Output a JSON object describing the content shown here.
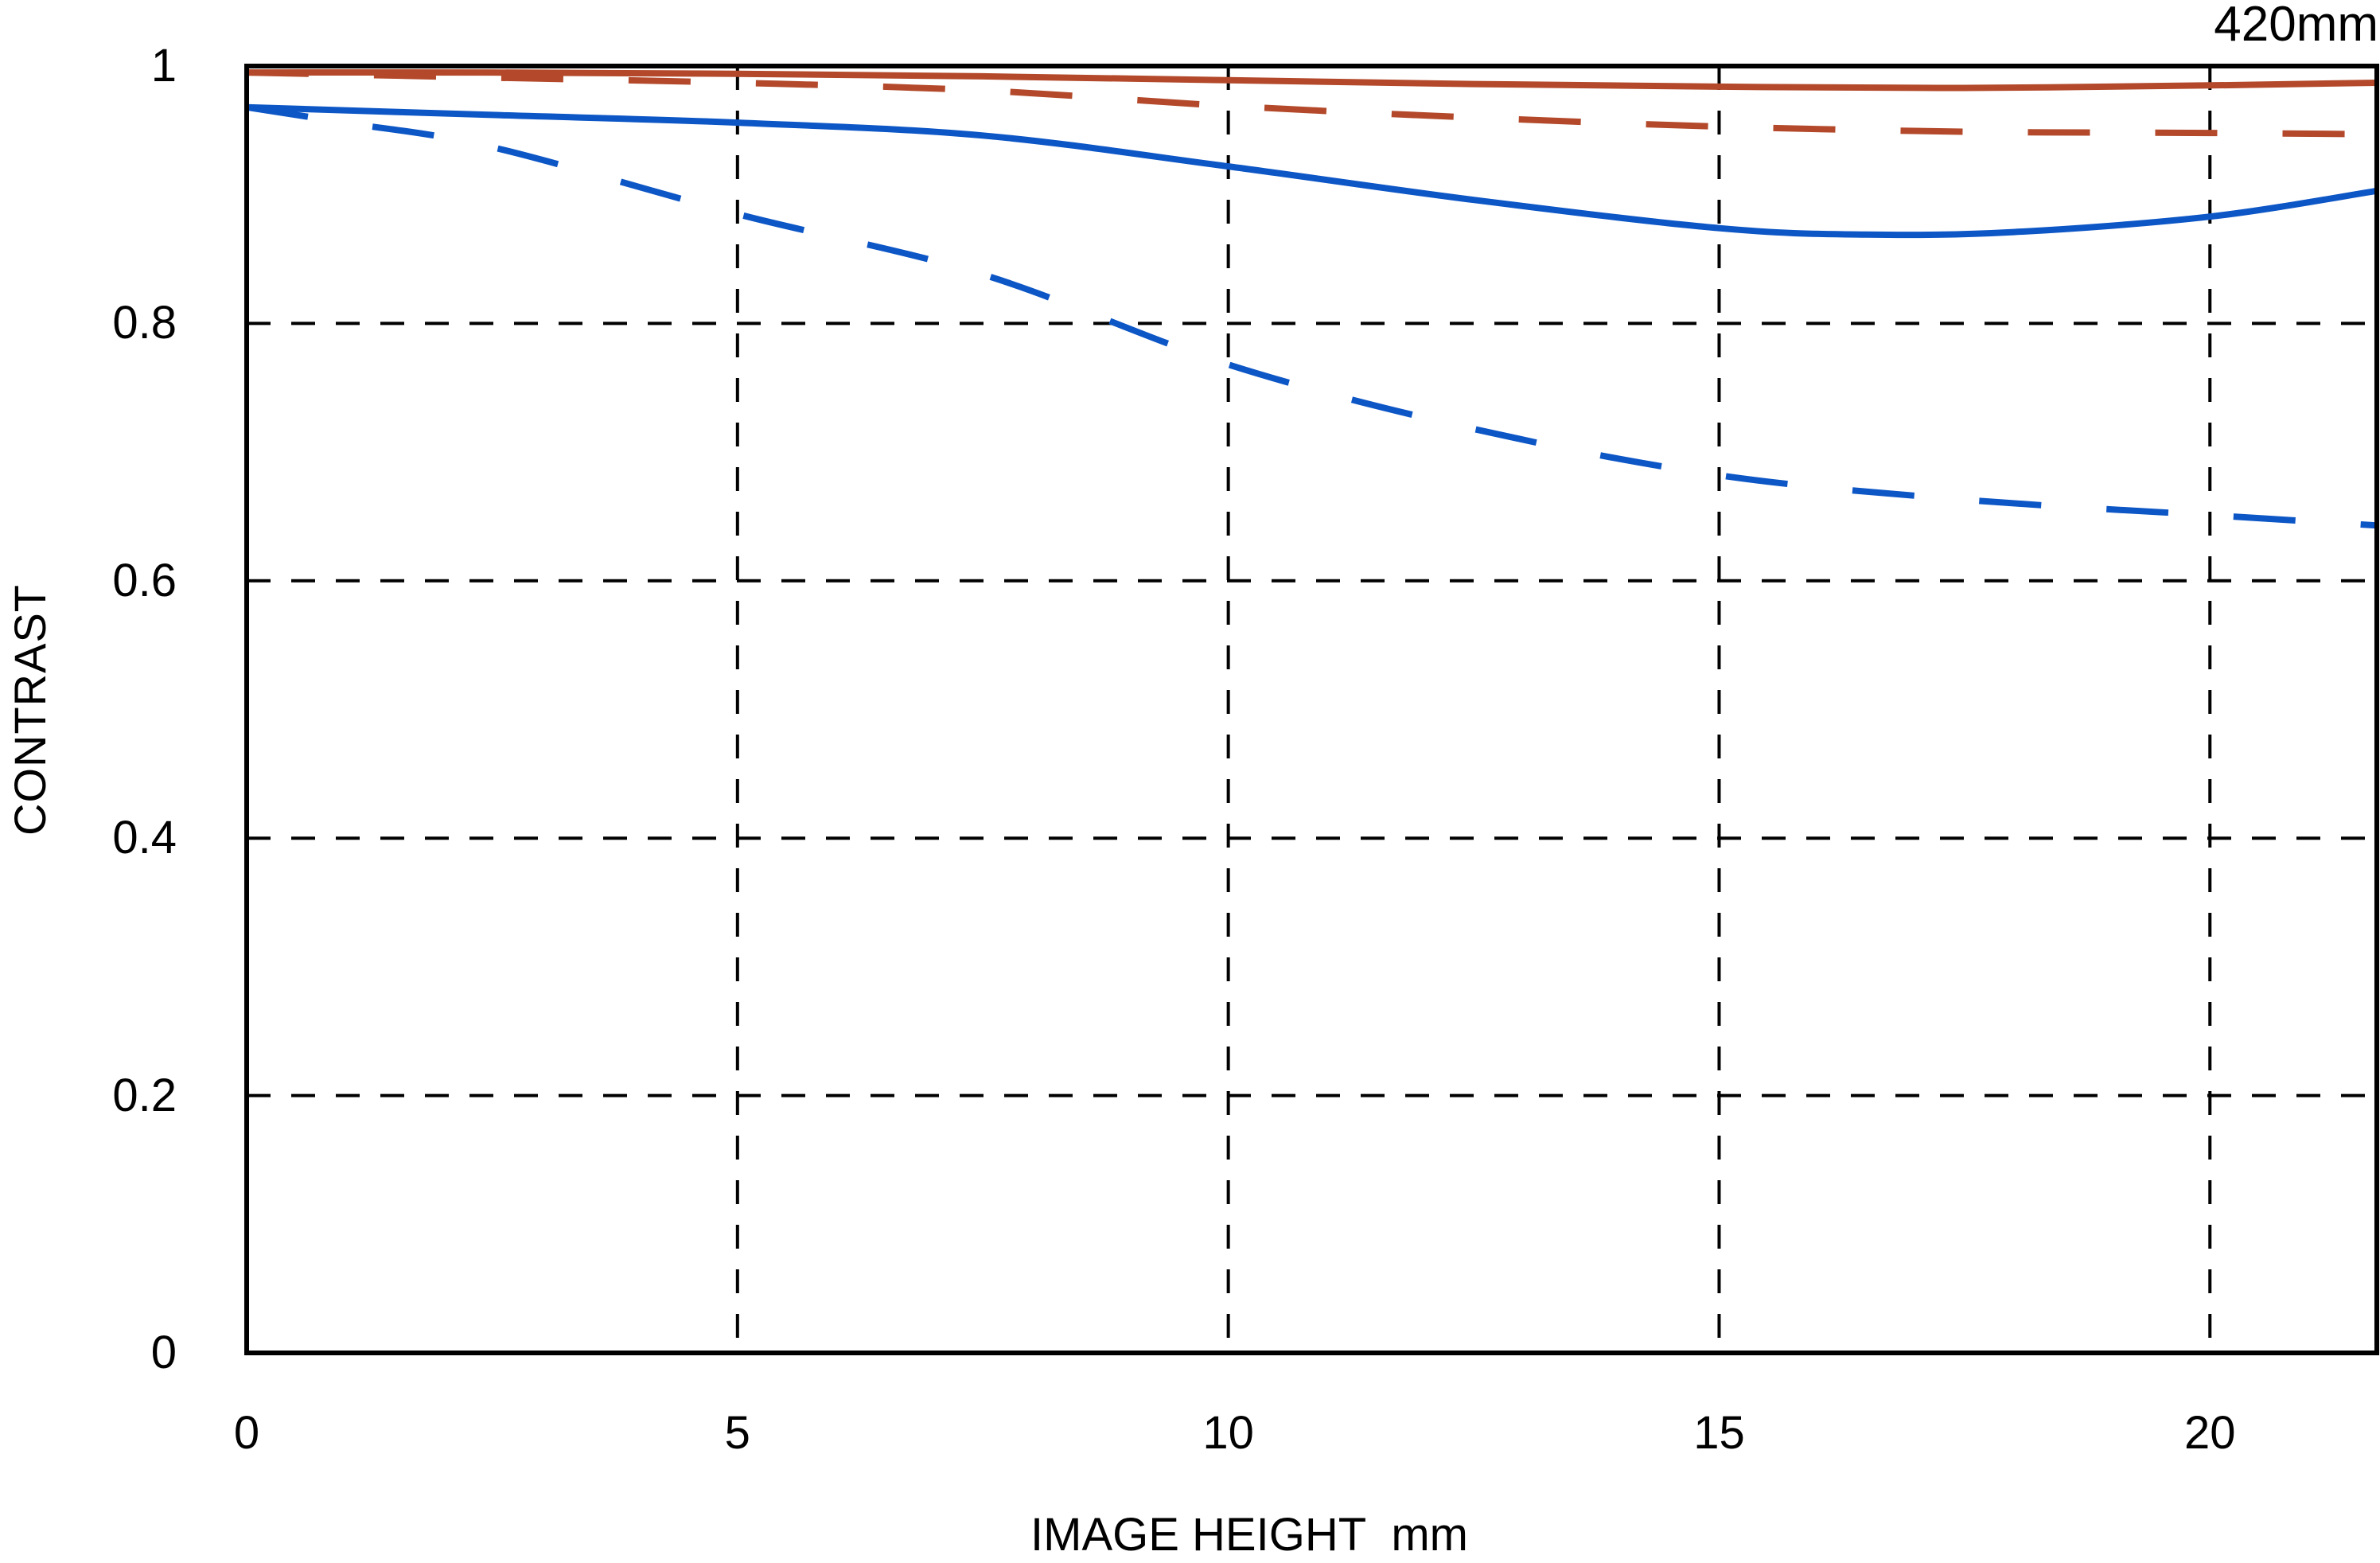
{
  "header": {
    "focal_length_label": "420mm"
  },
  "axes": {
    "y_title": "CONTRAST",
    "x_title": "IMAGE HEIGHT  mm",
    "y_ticks": [
      {
        "label": "1",
        "value": 1.0
      },
      {
        "label": "0.8",
        "value": 0.8
      },
      {
        "label": "0.6",
        "value": 0.6
      },
      {
        "label": "0.4",
        "value": 0.4
      },
      {
        "label": "0.2",
        "value": 0.2
      },
      {
        "label": "0",
        "value": 0.0
      }
    ],
    "x_ticks": [
      {
        "label": "0",
        "value": 0
      },
      {
        "label": "5",
        "value": 5
      },
      {
        "label": "10",
        "value": 10
      },
      {
        "label": "15",
        "value": 15
      },
      {
        "label": "20",
        "value": 20
      }
    ]
  },
  "colors": {
    "red": "#b3492a",
    "blue": "#0d56c6",
    "axis": "#000000",
    "background": "#ffffff"
  },
  "chart_data": {
    "type": "line",
    "title": "420mm",
    "xlabel": "IMAGE HEIGHT  mm",
    "ylabel": "CONTRAST",
    "xlim": [
      0,
      21.7
    ],
    "ylim": [
      0,
      1
    ],
    "x_gridlines": [
      5,
      10,
      15,
      20
    ],
    "y_gridlines": [
      0.2,
      0.4,
      0.6,
      0.8
    ],
    "grid": "dashed",
    "legend_position": "none",
    "series": [
      {
        "name": "red-solid",
        "color": "#b3492a",
        "style": "solid",
        "x": [
          0,
          2.5,
          5,
          7.5,
          10,
          12.5,
          15,
          17.5,
          20,
          21.7
        ],
        "y": [
          0.995,
          0.995,
          0.994,
          0.992,
          0.989,
          0.986,
          0.984,
          0.983,
          0.985,
          0.987
        ]
      },
      {
        "name": "red-dashed",
        "color": "#b3492a",
        "style": "dashed",
        "x": [
          0,
          2.5,
          5,
          7.5,
          10,
          12.5,
          15,
          17.5,
          20,
          21.7
        ],
        "y": [
          0.995,
          0.991,
          0.987,
          0.981,
          0.969,
          0.96,
          0.953,
          0.949,
          0.948,
          0.947
        ]
      },
      {
        "name": "blue-solid",
        "color": "#0d56c6",
        "style": "solid",
        "x": [
          0,
          2.5,
          5,
          7.5,
          10,
          12.5,
          15,
          16.5,
          18,
          20,
          21.7
        ],
        "y": [
          0.968,
          0.962,
          0.956,
          0.946,
          0.922,
          0.896,
          0.874,
          0.869,
          0.871,
          0.883,
          0.903
        ]
      },
      {
        "name": "blue-dashed",
        "color": "#0d56c6",
        "style": "dashed",
        "x": [
          0,
          1,
          2.5,
          5,
          7.5,
          10,
          12.5,
          15,
          17.5,
          20,
          21.7
        ],
        "y": [
          0.968,
          0.956,
          0.937,
          0.885,
          0.838,
          0.768,
          0.718,
          0.682,
          0.663,
          0.651,
          0.643
        ]
      }
    ]
  }
}
